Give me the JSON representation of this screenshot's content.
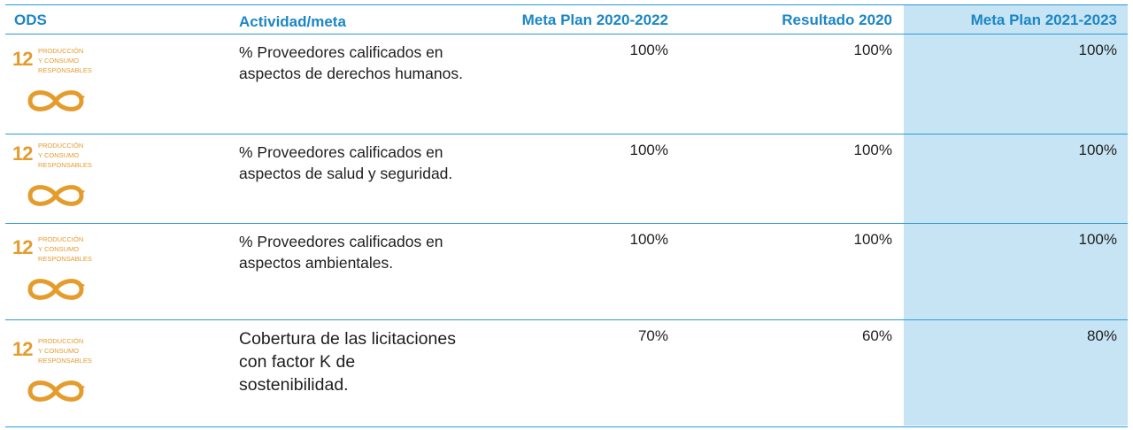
{
  "headers": {
    "ods": "ODS",
    "actividad": "Actividad/meta",
    "meta1": "Meta Plan 2020-2022",
    "resultado": "Resultado 2020",
    "meta2": "Meta  Plan 2021-2023"
  },
  "ods_badge": {
    "number": "12",
    "line1": "PRODUCCIÓN",
    "line2": "Y CONSUMO",
    "line3": "RESPONSABLES",
    "color": "#e49c2d",
    "icon": "infinity-arrow-icon"
  },
  "rows": [
    {
      "actividad": "% Proveedores calificados en aspectos de derechos humanos.",
      "meta1": "100%",
      "resultado": "100%",
      "meta2": "100%"
    },
    {
      "actividad": "% Proveedores calificados en aspectos de salud y seguridad.",
      "meta1": "100%",
      "resultado": "100%",
      "meta2": "100%"
    },
    {
      "actividad": "% Proveedores calificados en aspectos ambientales.",
      "meta1": "100%",
      "resultado": "100%",
      "meta2": "100%"
    },
    {
      "actividad": "Cobertura de las licitaciones con factor K de sostenibilidad.",
      "meta1": "70%",
      "resultado": "60%",
      "meta2": "80%"
    }
  ],
  "colors": {
    "accent": "#1b86c6",
    "rule": "#2a9bd6",
    "highlight": "#c6e4f4"
  }
}
